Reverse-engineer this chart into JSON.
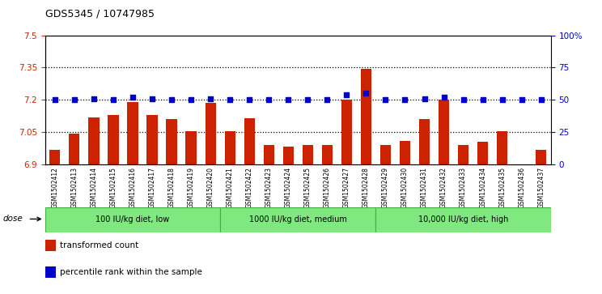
{
  "title": "GDS5345 / 10747985",
  "categories": [
    "GSM1502412",
    "GSM1502413",
    "GSM1502414",
    "GSM1502415",
    "GSM1502416",
    "GSM1502417",
    "GSM1502418",
    "GSM1502419",
    "GSM1502420",
    "GSM1502421",
    "GSM1502422",
    "GSM1502423",
    "GSM1502424",
    "GSM1502425",
    "GSM1502426",
    "GSM1502427",
    "GSM1502428",
    "GSM1502429",
    "GSM1502430",
    "GSM1502431",
    "GSM1502432",
    "GSM1502433",
    "GSM1502434",
    "GSM1502435",
    "GSM1502436",
    "GSM1502437"
  ],
  "bar_values": [
    6.97,
    7.045,
    7.12,
    7.13,
    7.19,
    7.13,
    7.11,
    7.055,
    7.185,
    7.055,
    7.115,
    6.99,
    6.985,
    6.99,
    6.99,
    7.2,
    7.345,
    6.99,
    7.01,
    7.11,
    7.2,
    6.99,
    7.005,
    7.055,
    6.9,
    6.97
  ],
  "blue_values": [
    50,
    50,
    51,
    50,
    52,
    51,
    50,
    50,
    51,
    50,
    50,
    50,
    50,
    50,
    50,
    54,
    55,
    50,
    50,
    51,
    52,
    50,
    50,
    50,
    50,
    50
  ],
  "bar_color": "#cc2200",
  "blue_color": "#0000cc",
  "ylim_left": [
    6.9,
    7.5
  ],
  "ylim_right": [
    0,
    100
  ],
  "yticks_left": [
    6.9,
    7.05,
    7.2,
    7.35,
    7.5
  ],
  "ytick_labels_left": [
    "6.9",
    "7.05",
    "7.2",
    "7.35",
    "7.5"
  ],
  "yticks_right": [
    0,
    25,
    50,
    75,
    100
  ],
  "ytick_labels_right": [
    "0",
    "25",
    "50",
    "75",
    "100%"
  ],
  "hlines": [
    7.05,
    7.2,
    7.35
  ],
  "groups": [
    {
      "label": "100 IU/kg diet, low",
      "start": 0,
      "end": 8
    },
    {
      "label": "1000 IU/kg diet, medium",
      "start": 9,
      "end": 16
    },
    {
      "label": "10,000 IU/kg diet, high",
      "start": 17,
      "end": 25
    }
  ],
  "dose_label": "dose",
  "legend_items": [
    {
      "color": "#cc2200",
      "label": "transformed count"
    },
    {
      "color": "#0000cc",
      "label": "percentile rank within the sample"
    }
  ],
  "bg_color": "#d8d8d8",
  "group_color": "#7fe87f",
  "group_border_color": "#40b040",
  "baseline": 6.9,
  "plot_bg": "#ffffff"
}
